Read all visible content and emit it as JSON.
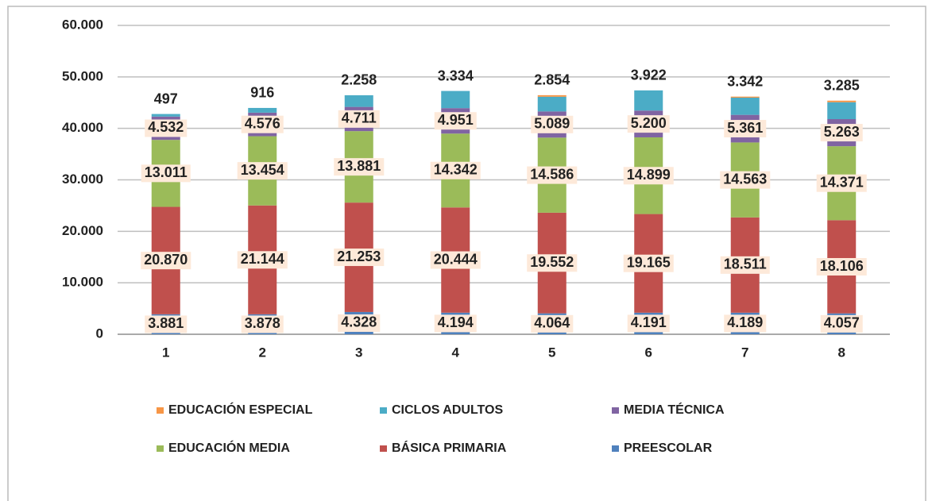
{
  "chart_data": {
    "type": "stacked_bar",
    "categories": [
      "1",
      "2",
      "3",
      "4",
      "5",
      "6",
      "7",
      "8"
    ],
    "series": [
      {
        "name": "PREESCOLAR",
        "color": "#4f81bd",
        "values": [
          3881,
          3878,
          4328,
          4194,
          4064,
          4191,
          4189,
          4057
        ],
        "value_labels": [
          "3.881",
          "3.878",
          "4.328",
          "4.194",
          "4.064",
          "4.191",
          "4.189",
          "4.057"
        ]
      },
      {
        "name": "BÁSICA PRIMARIA",
        "color": "#c0504d",
        "values": [
          20870,
          21144,
          21253,
          20444,
          19552,
          19165,
          18511,
          18106
        ],
        "value_labels": [
          "20.870",
          "21.144",
          "21.253",
          "20.444",
          "19.552",
          "19.165",
          "18.511",
          "18.106"
        ]
      },
      {
        "name": "EDUCACIÓN MEDIA",
        "color": "#9bbb59",
        "values": [
          13011,
          13454,
          13881,
          14342,
          14586,
          14899,
          14563,
          14371
        ],
        "value_labels": [
          "13.011",
          "13.454",
          "13.881",
          "14.342",
          "14.586",
          "14.899",
          "14.563",
          "14.371"
        ]
      },
      {
        "name": "MEDIA TÉCNICA",
        "color": "#8064a2",
        "values": [
          4532,
          4576,
          4711,
          4951,
          5089,
          5200,
          5361,
          5263
        ],
        "value_labels": [
          "4.532",
          "4.576",
          "4.711",
          "4.951",
          "5.089",
          "5.200",
          "5.361",
          "5.263"
        ]
      },
      {
        "name": "CICLOS ADULTOS",
        "color": "#4bacc6",
        "values": [
          497,
          916,
          2258,
          3334,
          2854,
          3922,
          3342,
          3285
        ],
        "value_labels": [
          "497",
          "916",
          "2.258",
          "3.334",
          "2.854",
          "3.922",
          "3.342",
          "3.285"
        ]
      },
      {
        "name": "EDUCACIÓN ESPECIAL",
        "color": "#f79646",
        "values": [
          0,
          0,
          0,
          0,
          300,
          0,
          200,
          300
        ]
      }
    ],
    "ylim": [
      0,
      60000
    ],
    "yticks": [
      0,
      {
        "value": 10000,
        "label": "10.000"
      },
      {
        "value": 20000,
        "label": "20.000"
      },
      {
        "value": 30000,
        "label": "30.000"
      },
      {
        "value": 40000,
        "label": "40.000"
      },
      {
        "value": 50000,
        "label": "50.000"
      },
      {
        "value": 60000,
        "label": "60.000"
      }
    ],
    "grid": true
  }
}
